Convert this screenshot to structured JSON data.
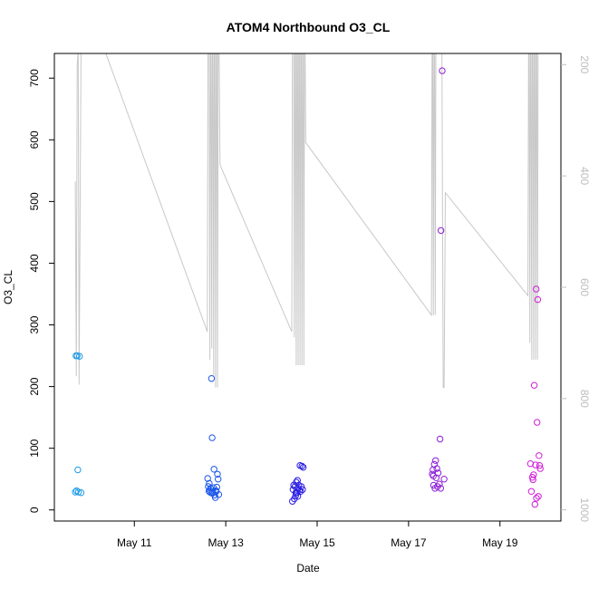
{
  "chart_data": {
    "type": "scatter",
    "title": "ATOM4 Northbound O3_CL",
    "xlabel": "Date",
    "ylabel": "O3_CL",
    "xlim": [
      "2013-05-09T06:00",
      "2013-05-20T08:00"
    ],
    "x_ticks": [
      {
        "value": "2013-05-11",
        "label": "May 11"
      },
      {
        "value": "2013-05-13",
        "label": "May 13"
      },
      {
        "value": "2013-05-15",
        "label": "May 15"
      },
      {
        "value": "2013-05-17",
        "label": "May 17"
      },
      {
        "value": "2013-05-19",
        "label": "May 19"
      }
    ],
    "ylim": [
      -18,
      740
    ],
    "y_ticks": [
      0,
      100,
      200,
      300,
      400,
      500,
      600,
      700
    ],
    "y2_label": "",
    "y2_reversed": true,
    "y2lim": [
      1020,
      180
    ],
    "y2_ticks": [
      200,
      400,
      600,
      800,
      1000
    ],
    "grid": false,
    "legend": "none",
    "point_style": "open-circle",
    "secondary_line_color": "#c8c8c8",
    "series": [
      {
        "color": "#1e9be8",
        "points": [
          {
            "x": "2013-05-09T17:20",
            "y": 250
          },
          {
            "x": "2013-05-09T18:00",
            "y": 250
          },
          {
            "x": "2013-05-09T19:10",
            "y": 249
          },
          {
            "x": "2013-05-09T17:00",
            "y": 29
          },
          {
            "x": "2013-05-09T17:40",
            "y": 31
          },
          {
            "x": "2013-05-09T18:20",
            "y": 65
          },
          {
            "x": "2013-05-09T18:40",
            "y": 29
          },
          {
            "x": "2013-05-09T20:00",
            "y": 28
          }
        ]
      },
      {
        "color": "#1c57ea",
        "points": [
          {
            "x": "2013-05-12T14:30",
            "y": 51
          },
          {
            "x": "2013-05-12T14:50",
            "y": 38
          },
          {
            "x": "2013-05-12T15:10",
            "y": 30
          },
          {
            "x": "2013-05-12T15:20",
            "y": 43
          },
          {
            "x": "2013-05-12T15:40",
            "y": 32
          },
          {
            "x": "2013-05-12T16:00",
            "y": 35
          },
          {
            "x": "2013-05-12T16:10",
            "y": 28
          },
          {
            "x": "2013-05-12T16:30",
            "y": 213
          },
          {
            "x": "2013-05-12T16:50",
            "y": 117
          },
          {
            "x": "2013-05-12T17:10",
            "y": 29
          },
          {
            "x": "2013-05-12T17:30",
            "y": 36
          },
          {
            "x": "2013-05-12T17:50",
            "y": 66
          },
          {
            "x": "2013-05-12T18:10",
            "y": 24
          },
          {
            "x": "2013-05-12T18:30",
            "y": 20
          },
          {
            "x": "2013-05-12T19:00",
            "y": 30
          },
          {
            "x": "2013-05-12T19:20",
            "y": 37
          },
          {
            "x": "2013-05-12T19:40",
            "y": 58
          },
          {
            "x": "2013-05-12T20:00",
            "y": 50
          },
          {
            "x": "2013-05-12T20:20",
            "y": 25
          },
          {
            "x": "2013-05-12T18:50",
            "y": 31
          },
          {
            "x": "2013-05-12T17:00",
            "y": 27
          }
        ]
      },
      {
        "color": "#2a1ee3",
        "points": [
          {
            "x": "2013-05-14T11:00",
            "y": 14
          },
          {
            "x": "2013-05-14T11:20",
            "y": 33
          },
          {
            "x": "2013-05-14T11:40",
            "y": 40
          },
          {
            "x": "2013-05-14T12:00",
            "y": 18
          },
          {
            "x": "2013-05-14T12:20",
            "y": 38
          },
          {
            "x": "2013-05-14T12:40",
            "y": 23
          },
          {
            "x": "2013-05-14T13:00",
            "y": 45
          },
          {
            "x": "2013-05-14T13:20",
            "y": 28
          },
          {
            "x": "2013-05-14T13:40",
            "y": 48
          },
          {
            "x": "2013-05-14T14:00",
            "y": 35
          },
          {
            "x": "2013-05-14T14:20",
            "y": 40
          },
          {
            "x": "2013-05-14T14:40",
            "y": 32
          },
          {
            "x": "2013-05-14T15:00",
            "y": 72
          },
          {
            "x": "2013-05-14T15:20",
            "y": 30
          },
          {
            "x": "2013-05-14T15:40",
            "y": 38
          },
          {
            "x": "2013-05-14T16:00",
            "y": 71
          },
          {
            "x": "2013-05-14T16:40",
            "y": 69
          },
          {
            "x": "2013-05-14T16:20",
            "y": 33
          },
          {
            "x": "2013-05-14T12:50",
            "y": 28
          },
          {
            "x": "2013-05-14T13:50",
            "y": 22
          }
        ]
      },
      {
        "color": "#8e1fd8",
        "points": [
          {
            "x": "2013-05-17T12:30",
            "y": 58
          },
          {
            "x": "2013-05-17T12:50",
            "y": 65
          },
          {
            "x": "2013-05-17T13:10",
            "y": 40
          },
          {
            "x": "2013-05-17T13:30",
            "y": 74
          },
          {
            "x": "2013-05-17T13:50",
            "y": 35
          },
          {
            "x": "2013-05-17T14:10",
            "y": 80
          },
          {
            "x": "2013-05-17T14:30",
            "y": 52
          },
          {
            "x": "2013-05-17T14:50",
            "y": 67
          },
          {
            "x": "2013-05-17T15:10",
            "y": 38
          },
          {
            "x": "2013-05-17T15:30",
            "y": 60
          },
          {
            "x": "2013-05-17T16:10",
            "y": 42
          },
          {
            "x": "2013-05-17T16:30",
            "y": 115
          },
          {
            "x": "2013-05-17T17:00",
            "y": 453
          },
          {
            "x": "2013-05-17T17:40",
            "y": 712
          },
          {
            "x": "2013-05-17T18:40",
            "y": 50
          },
          {
            "x": "2013-05-17T16:50",
            "y": 35
          },
          {
            "x": "2013-05-17T13:00",
            "y": 55
          }
        ]
      },
      {
        "color": "#cf1ed6",
        "points": [
          {
            "x": "2013-05-19T16:00",
            "y": 75
          },
          {
            "x": "2013-05-19T16:30",
            "y": 30
          },
          {
            "x": "2013-05-19T17:00",
            "y": 53
          },
          {
            "x": "2013-05-19T17:20",
            "y": 49
          },
          {
            "x": "2013-05-19T17:40",
            "y": 57
          },
          {
            "x": "2013-05-19T18:00",
            "y": 202
          },
          {
            "x": "2013-05-19T18:20",
            "y": 9
          },
          {
            "x": "2013-05-19T18:40",
            "y": 73
          },
          {
            "x": "2013-05-19T19:00",
            "y": 358
          },
          {
            "x": "2013-05-19T19:10",
            "y": 19
          },
          {
            "x": "2013-05-19T19:30",
            "y": 142
          },
          {
            "x": "2013-05-19T19:50",
            "y": 341
          },
          {
            "x": "2013-05-19T20:10",
            "y": 22
          },
          {
            "x": "2013-05-19T20:30",
            "y": 88
          },
          {
            "x": "2013-05-19T20:50",
            "y": 72
          },
          {
            "x": "2013-05-19T21:10",
            "y": 67
          }
        ]
      }
    ],
    "secondary_series": {
      "axis": "right",
      "points": [
        {
          "x": "2013-05-09T17:00",
          "y": 410
        },
        {
          "x": "2013-05-09T17:30",
          "y": 760
        },
        {
          "x": "2013-05-09T18:00",
          "y": 200
        },
        {
          "x": "2013-05-09T18:30",
          "y": 175
        },
        {
          "x": "2013-05-09T19:00",
          "y": 775
        },
        {
          "x": "2013-05-09T20:00",
          "y": 180
        },
        {
          "x": "2013-05-09T21:00",
          "y": 170
        },
        {
          "x": "2013-05-10T08:00",
          "y": 170
        },
        {
          "x": "2013-05-12T14:20",
          "y": 680
        },
        {
          "x": "2013-05-12T14:40",
          "y": 180
        },
        {
          "x": "2013-05-12T15:20",
          "y": 180
        },
        {
          "x": "2013-05-12T15:40",
          "y": 730
        },
        {
          "x": "2013-05-12T16:00",
          "y": 180
        },
        {
          "x": "2013-05-12T16:20",
          "y": 180
        },
        {
          "x": "2013-05-12T16:40",
          "y": 710
        },
        {
          "x": "2013-05-12T17:00",
          "y": 180
        },
        {
          "x": "2013-05-12T17:20",
          "y": 180
        },
        {
          "x": "2013-05-12T17:40",
          "y": 760
        },
        {
          "x": "2013-05-12T18:00",
          "y": 180
        },
        {
          "x": "2013-05-12T18:20",
          "y": 180
        },
        {
          "x": "2013-05-12T18:40",
          "y": 780
        },
        {
          "x": "2013-05-12T19:00",
          "y": 180
        },
        {
          "x": "2013-05-12T19:20",
          "y": 180
        },
        {
          "x": "2013-05-12T19:40",
          "y": 780
        },
        {
          "x": "2013-05-12T20:00",
          "y": 180
        },
        {
          "x": "2013-05-12T20:30",
          "y": 180
        },
        {
          "x": "2013-05-12T21:00",
          "y": 380
        },
        {
          "x": "2013-05-14T10:40",
          "y": 680
        },
        {
          "x": "2013-05-14T11:00",
          "y": 180
        },
        {
          "x": "2013-05-14T11:40",
          "y": 180
        },
        {
          "x": "2013-05-14T12:00",
          "y": 690
        },
        {
          "x": "2013-05-14T12:20",
          "y": 180
        },
        {
          "x": "2013-05-14T12:40",
          "y": 180
        },
        {
          "x": "2013-05-14T13:00",
          "y": 740
        },
        {
          "x": "2013-05-14T13:20",
          "y": 180
        },
        {
          "x": "2013-05-14T13:40",
          "y": 180
        },
        {
          "x": "2013-05-14T14:00",
          "y": 740
        },
        {
          "x": "2013-05-14T14:20",
          "y": 180
        },
        {
          "x": "2013-05-14T14:40",
          "y": 180
        },
        {
          "x": "2013-05-14T15:00",
          "y": 740
        },
        {
          "x": "2013-05-14T15:20",
          "y": 180
        },
        {
          "x": "2013-05-14T15:40",
          "y": 180
        },
        {
          "x": "2013-05-14T16:00",
          "y": 740
        },
        {
          "x": "2013-05-14T16:20",
          "y": 180
        },
        {
          "x": "2013-05-14T16:40",
          "y": 180
        },
        {
          "x": "2013-05-14T17:00",
          "y": 740
        },
        {
          "x": "2013-05-14T17:20",
          "y": 180
        },
        {
          "x": "2013-05-14T17:40",
          "y": 180
        },
        {
          "x": "2013-05-14T18:00",
          "y": 340
        },
        {
          "x": "2013-05-17T12:00",
          "y": 650
        },
        {
          "x": "2013-05-17T12:20",
          "y": 180
        },
        {
          "x": "2013-05-17T12:40",
          "y": 180
        },
        {
          "x": "2013-05-17T13:00",
          "y": 650
        },
        {
          "x": "2013-05-17T13:20",
          "y": 180
        },
        {
          "x": "2013-05-17T13:40",
          "y": 180
        },
        {
          "x": "2013-05-17T14:00",
          "y": 650
        },
        {
          "x": "2013-05-17T14:20",
          "y": 180
        },
        {
          "x": "2013-05-17T14:40",
          "y": 180
        },
        {
          "x": "2013-05-17T15:40",
          "y": 180
        },
        {
          "x": "2013-05-17T16:30",
          "y": 180
        },
        {
          "x": "2013-05-17T17:30",
          "y": 180
        },
        {
          "x": "2013-05-17T18:10",
          "y": 780
        },
        {
          "x": "2013-05-17T18:40",
          "y": 780
        },
        {
          "x": "2013-05-17T19:20",
          "y": 430
        },
        {
          "x": "2013-05-19T14:40",
          "y": 615
        },
        {
          "x": "2013-05-19T15:00",
          "y": 180
        },
        {
          "x": "2013-05-19T15:20",
          "y": 180
        },
        {
          "x": "2013-05-19T15:40",
          "y": 700
        },
        {
          "x": "2013-05-19T16:00",
          "y": 180
        },
        {
          "x": "2013-05-19T16:20",
          "y": 180
        },
        {
          "x": "2013-05-19T16:40",
          "y": 730
        },
        {
          "x": "2013-05-19T17:00",
          "y": 180
        },
        {
          "x": "2013-05-19T17:20",
          "y": 180
        },
        {
          "x": "2013-05-19T17:40",
          "y": 730
        },
        {
          "x": "2013-05-19T18:00",
          "y": 180
        },
        {
          "x": "2013-05-19T18:20",
          "y": 180
        },
        {
          "x": "2013-05-19T18:40",
          "y": 730
        },
        {
          "x": "2013-05-19T19:00",
          "y": 180
        },
        {
          "x": "2013-05-19T19:20",
          "y": 180
        },
        {
          "x": "2013-05-19T19:40",
          "y": 730
        },
        {
          "x": "2013-05-19T20:00",
          "y": 180
        }
      ]
    }
  }
}
